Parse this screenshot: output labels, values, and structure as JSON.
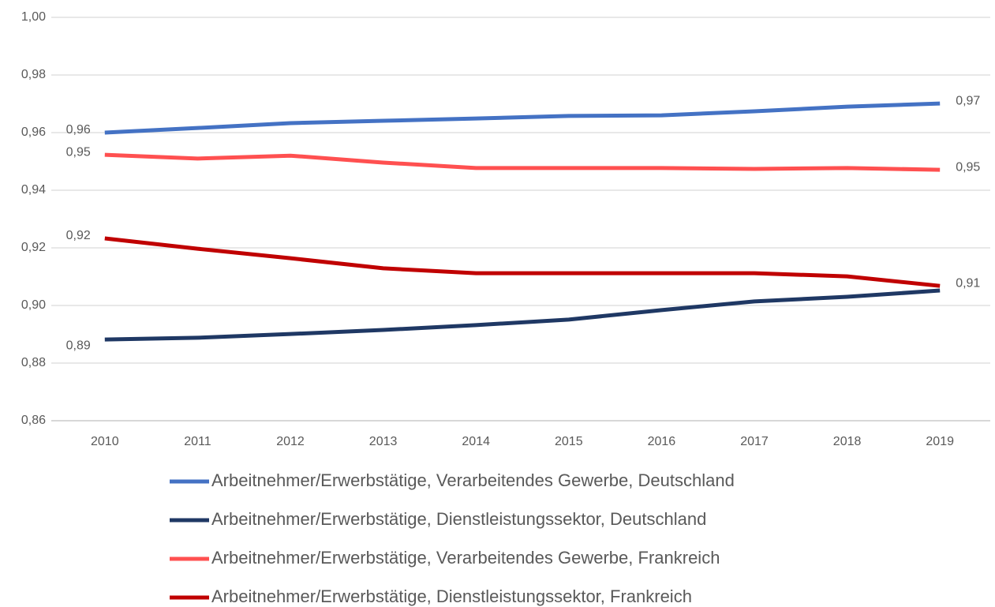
{
  "chart_data": {
    "type": "line",
    "categories": [
      "2010",
      "2011",
      "2012",
      "2013",
      "2014",
      "2015",
      "2016",
      "2017",
      "2018",
      "2019"
    ],
    "series": [
      {
        "name": "Arbeitnehmer/Erwerbstätige, Verarbeitendes Gewerbe, Deutschland",
        "color": "#4472c4",
        "values": [
          0.96,
          0.9616,
          0.9633,
          0.9641,
          0.9649,
          0.9658,
          0.966,
          0.9674,
          0.969,
          0.9701
        ],
        "value_labels": [
          "0,96",
          null,
          null,
          null,
          null,
          null,
          null,
          null,
          null,
          "0,97"
        ]
      },
      {
        "name": "Arbeitnehmer/Erwerbstätige, Dienstleistungssektor,  Deutschland",
        "color": "#1f3864",
        "values": [
          0.8882,
          0.8888,
          0.8901,
          0.8915,
          0.8932,
          0.8951,
          0.8984,
          0.9014,
          0.903,
          0.9052
        ],
        "value_labels": [
          "0,89",
          null,
          null,
          null,
          null,
          null,
          null,
          null,
          null,
          null
        ]
      },
      {
        "name": "Arbeitnehmer/Erwerbstätige, Verarbeitendes Gewerbe, Frankreich",
        "color": "#ff5050",
        "values": [
          0.9523,
          0.951,
          0.952,
          0.9496,
          0.9477,
          0.9477,
          0.9477,
          0.9474,
          0.9477,
          0.9471
        ],
        "value_labels": [
          "0,95",
          null,
          null,
          null,
          null,
          null,
          null,
          null,
          null,
          "0,95"
        ]
      },
      {
        "name": "Arbeitnehmer/Erwerbstätige, Dienstleistungssektor,  Frankreich",
        "color": "#c00000",
        "values": [
          0.9233,
          0.9197,
          0.9164,
          0.9129,
          0.9112,
          0.9112,
          0.9112,
          0.9112,
          0.9101,
          0.9068
        ],
        "value_labels": [
          "0,92",
          null,
          null,
          null,
          null,
          null,
          null,
          null,
          null,
          "0,91"
        ]
      }
    ],
    "ylim": [
      0.86,
      1.0
    ],
    "yticks": [
      {
        "value": 0.86,
        "label": "0,86"
      },
      {
        "value": 0.88,
        "label": "0,88"
      },
      {
        "value": 0.9,
        "label": "0,90"
      },
      {
        "value": 0.92,
        "label": "0,92"
      },
      {
        "value": 0.94,
        "label": "0,94"
      },
      {
        "value": 0.96,
        "label": "0,96"
      },
      {
        "value": 0.98,
        "label": "0,98"
      },
      {
        "value": 1.0,
        "label": "1,00"
      }
    ],
    "grid": true,
    "legend": "bottom"
  }
}
